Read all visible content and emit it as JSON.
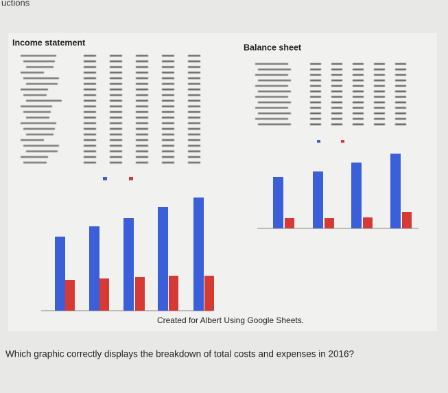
{
  "header": {
    "title": "uctions"
  },
  "figure": {
    "left_title": "Income statement",
    "right_title": "Balance sheet",
    "caption": "Created for Albert Using Google Sheets."
  },
  "question": "Which graphic correctly displays the breakdown of total costs and expenses in 2016?"
}
